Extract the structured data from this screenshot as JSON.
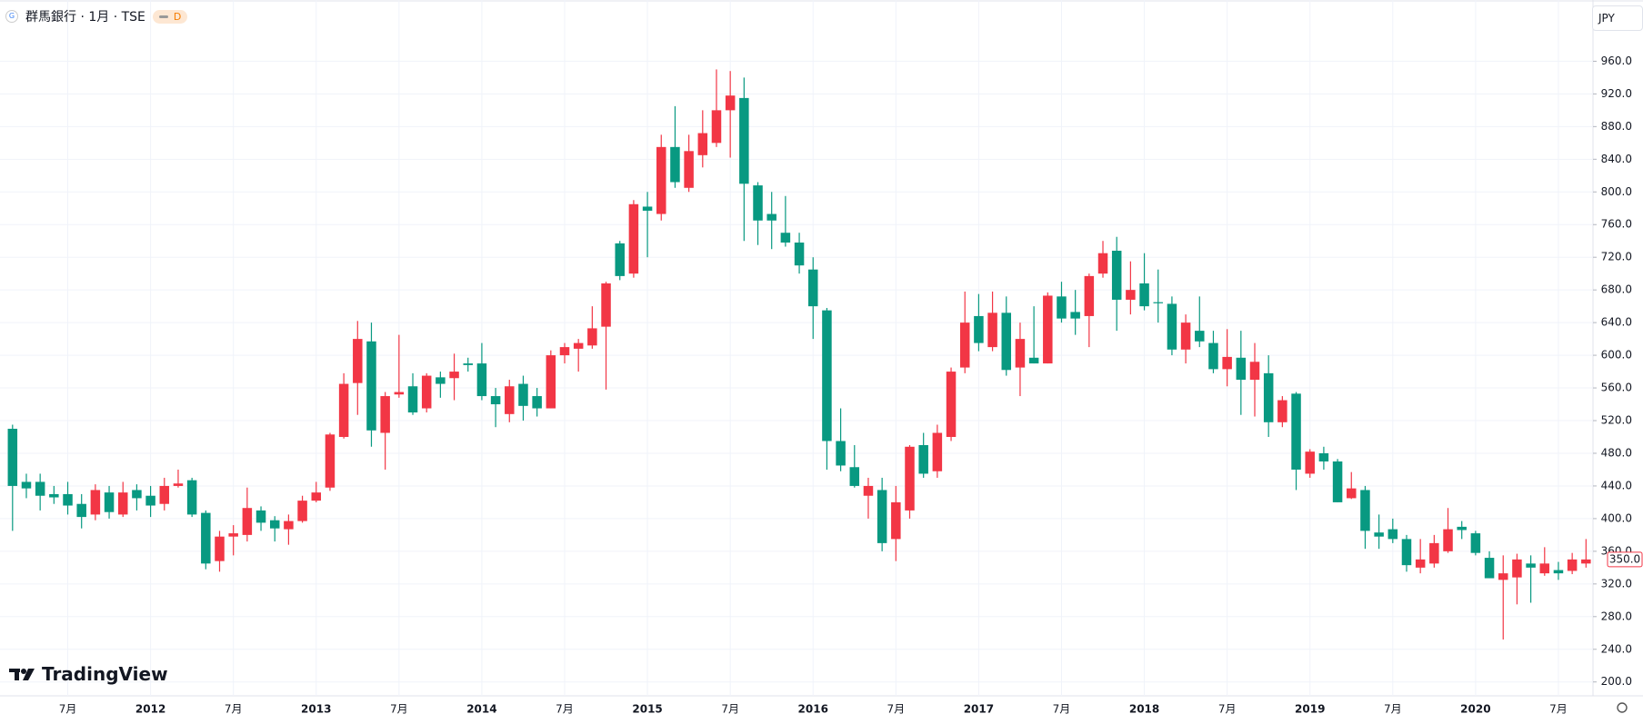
{
  "header": {
    "title": "群馬銀行 · 1月 · TSE",
    "badge": "D",
    "currency": "JPY"
  },
  "brand": "TradingView",
  "chart_data": {
    "type": "candlestick",
    "categories": [
      null,
      null,
      null,
      null,
      "7月",
      null,
      null,
      null,
      null,
      null,
      "2012",
      null,
      null,
      null,
      null,
      null,
      "7月",
      null,
      null,
      null,
      null,
      null,
      "2013",
      null,
      null,
      null,
      null,
      null,
      "7月",
      null,
      null,
      null,
      null,
      null,
      "2014",
      null,
      null,
      null,
      null,
      null,
      "7月",
      null,
      null,
      null,
      null,
      null,
      "2015",
      null,
      null,
      null,
      null,
      null,
      "7月",
      null,
      null,
      null,
      null,
      null,
      "2016",
      null,
      null,
      null,
      null,
      null,
      "7月",
      null,
      null,
      null,
      null,
      null,
      "2017",
      null,
      null,
      null,
      null,
      null,
      "7月",
      null,
      null,
      null,
      null,
      null,
      "2018",
      null,
      null,
      null,
      null,
      null,
      "7月",
      null,
      null,
      null,
      null,
      null,
      "2019",
      null,
      null,
      null,
      null,
      null,
      "7月",
      null,
      null,
      null,
      null,
      null,
      "2020",
      null,
      null,
      null,
      null,
      null,
      "7月",
      null,
      null
    ],
    "open": [
      510,
      445,
      445,
      430,
      430,
      418,
      405,
      432,
      405,
      435,
      428,
      418,
      440,
      447,
      407,
      348,
      378,
      380,
      410,
      398,
      387,
      397,
      422,
      438,
      500,
      566,
      617,
      505,
      552,
      562,
      535,
      573,
      572,
      590,
      590,
      550,
      528,
      565,
      550,
      535,
      600,
      608,
      612,
      635,
      737,
      700,
      782,
      773,
      855,
      805,
      845,
      860,
      900,
      915,
      808,
      773,
      750,
      738,
      705,
      655,
      495,
      463,
      428,
      435,
      375,
      410,
      490,
      458,
      500,
      585,
      648,
      610,
      652,
      585,
      597,
      590,
      672,
      653,
      648,
      700,
      728,
      668,
      688,
      665,
      663,
      607,
      630,
      615,
      583,
      597,
      570,
      578,
      518,
      553,
      455,
      480,
      470,
      425,
      435,
      383,
      387,
      375,
      340,
      345,
      360,
      390,
      382,
      352,
      325,
      328,
      345,
      333,
      337,
      336,
      345
    ],
    "high": [
      515,
      455,
      455,
      440,
      445,
      430,
      442,
      440,
      445,
      442,
      440,
      450,
      460,
      450,
      410,
      385,
      392,
      438,
      415,
      403,
      405,
      428,
      445,
      505,
      578,
      642,
      640,
      555,
      625,
      578,
      578,
      580,
      602,
      597,
      615,
      560,
      570,
      575,
      560,
      606,
      615,
      620,
      660,
      690,
      740,
      790,
      800,
      870,
      905,
      870,
      900,
      950,
      948,
      940,
      812,
      800,
      795,
      750,
      720,
      658,
      535,
      490,
      450,
      450,
      440,
      490,
      505,
      515,
      585,
      678,
      675,
      678,
      672,
      640,
      660,
      677,
      690,
      680,
      700,
      740,
      745,
      715,
      725,
      705,
      672,
      650,
      672,
      630,
      632,
      630,
      615,
      600,
      550,
      555,
      485,
      488,
      473,
      457,
      440,
      405,
      400,
      380,
      375,
      380,
      413,
      397,
      385,
      360,
      355,
      357,
      355,
      365,
      347,
      358,
      375
    ],
    "low": [
      385,
      425,
      410,
      418,
      405,
      388,
      398,
      400,
      402,
      410,
      402,
      410,
      438,
      402,
      338,
      335,
      355,
      372,
      385,
      372,
      368,
      395,
      420,
      434,
      498,
      527,
      488,
      460,
      548,
      527,
      530,
      548,
      545,
      580,
      545,
      512,
      518,
      520,
      525,
      535,
      590,
      580,
      608,
      558,
      692,
      695,
      720,
      765,
      805,
      800,
      830,
      855,
      842,
      740,
      735,
      730,
      733,
      700,
      620,
      460,
      458,
      438,
      400,
      360,
      348,
      400,
      450,
      450,
      495,
      578,
      605,
      605,
      575,
      550,
      590,
      590,
      640,
      625,
      610,
      695,
      630,
      650,
      655,
      640,
      600,
      590,
      610,
      578,
      562,
      527,
      525,
      500,
      512,
      435,
      450,
      460,
      420,
      424,
      363,
      363,
      370,
      335,
      333,
      340,
      358,
      375,
      355,
      327,
      252,
      295,
      297,
      330,
      325,
      332,
      340
    ],
    "close": [
      440,
      437,
      428,
      426,
      416,
      402,
      435,
      408,
      432,
      425,
      416,
      440,
      443,
      405,
      345,
      378,
      382,
      413,
      395,
      388,
      397,
      422,
      432,
      503,
      565,
      620,
      508,
      550,
      555,
      530,
      575,
      565,
      580,
      588,
      550,
      540,
      562,
      538,
      535,
      600,
      610,
      615,
      633,
      688,
      697,
      785,
      777,
      855,
      812,
      850,
      872,
      900,
      918,
      810,
      765,
      765,
      738,
      710,
      660,
      495,
      465,
      440,
      440,
      370,
      420,
      488,
      455,
      505,
      580,
      640,
      615,
      652,
      582,
      620,
      590,
      673,
      645,
      645,
      697,
      725,
      668,
      680,
      660,
      664,
      607,
      640,
      617,
      583,
      598,
      570,
      592,
      518,
      545,
      460,
      482,
      470,
      420,
      437,
      385,
      378,
      375,
      343,
      350,
      370,
      387,
      386,
      358,
      327,
      333,
      350,
      340,
      345,
      333,
      350,
      350
    ],
    "up_color": "#f23645",
    "down_color": "#089981",
    "ylim": [
      183,
      1035
    ],
    "yticks": [
      {
        "value": 200,
        "label": "200.0"
      },
      {
        "value": 240,
        "label": "240.0"
      },
      {
        "value": 280,
        "label": "280.0"
      },
      {
        "value": 320,
        "label": "320.0"
      },
      {
        "value": 360,
        "label": "360.0"
      },
      {
        "value": 400,
        "label": "400.0"
      },
      {
        "value": 440,
        "label": "440.0"
      },
      {
        "value": 480,
        "label": "480.0"
      },
      {
        "value": 520,
        "label": "520.0"
      },
      {
        "value": 560,
        "label": "560.0"
      },
      {
        "value": 600,
        "label": "600.0"
      },
      {
        "value": 640,
        "label": "640.0"
      },
      {
        "value": 680,
        "label": "680.0"
      },
      {
        "value": 720,
        "label": "720.0"
      },
      {
        "value": 760,
        "label": "760.0"
      },
      {
        "value": 800,
        "label": "800.0"
      },
      {
        "value": 840,
        "label": "840.0"
      },
      {
        "value": 880,
        "label": "880.0"
      },
      {
        "value": 920,
        "label": "920.0"
      },
      {
        "value": 960,
        "label": "960.0"
      }
    ],
    "last_price": {
      "value": 350,
      "label": "350.0"
    },
    "grid": true
  }
}
